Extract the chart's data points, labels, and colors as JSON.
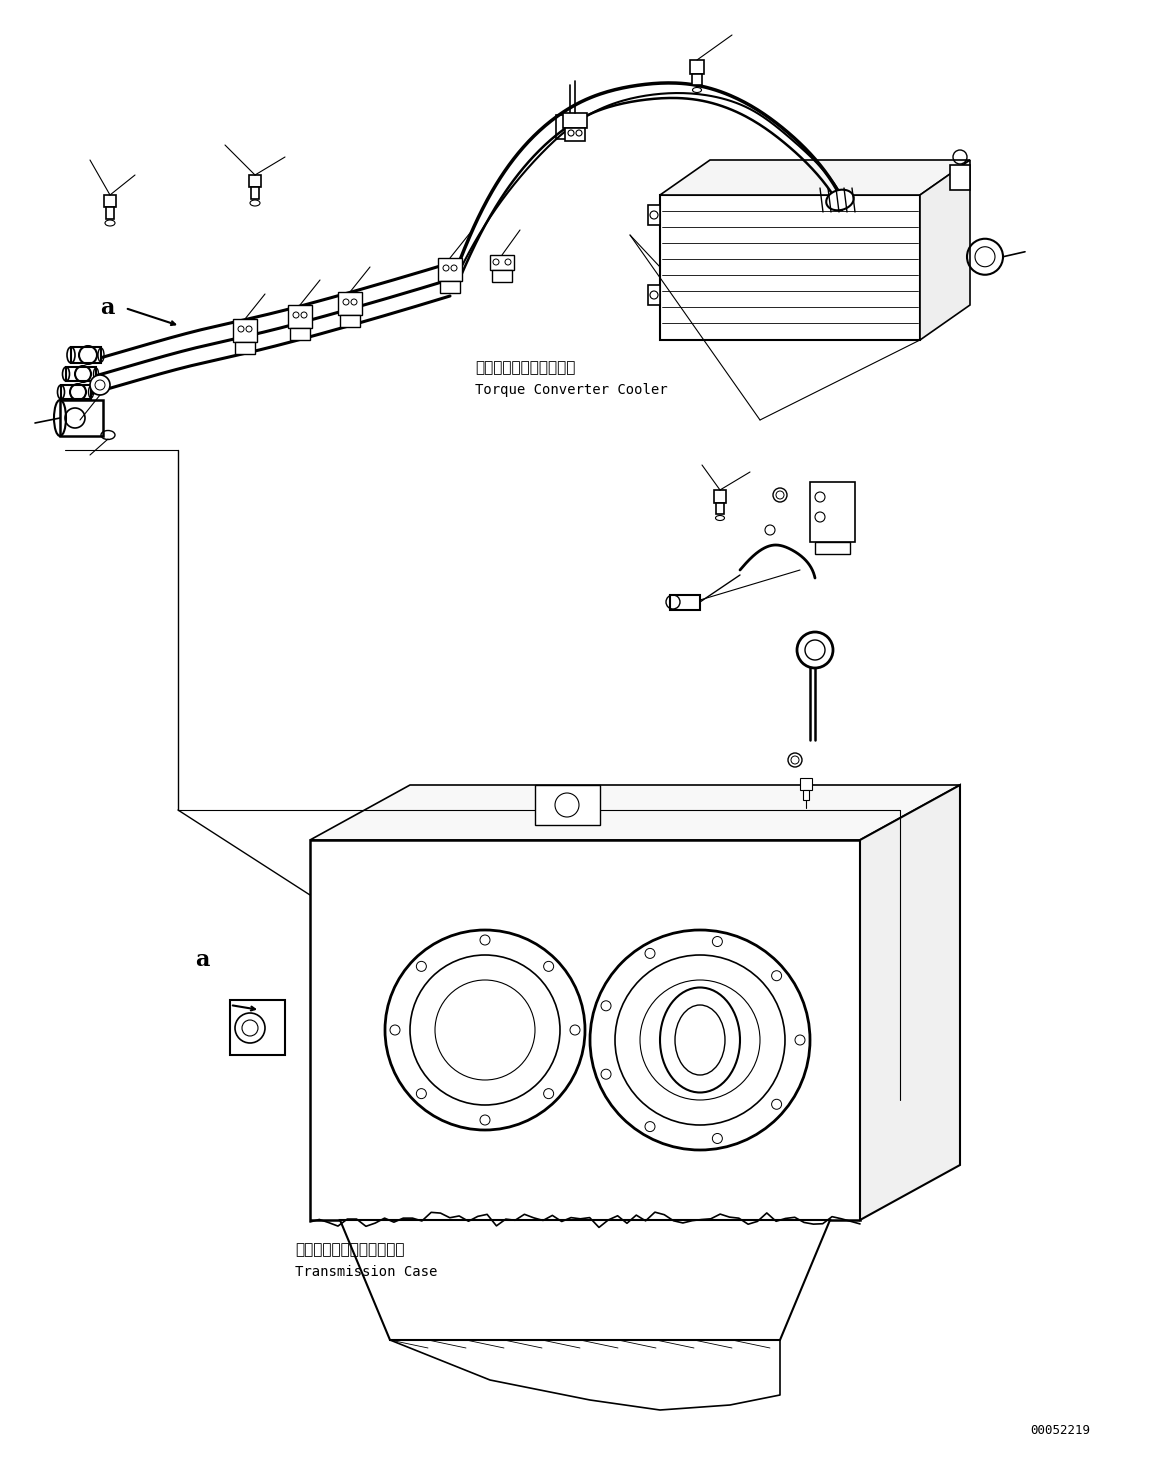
{
  "bg_color": "#ffffff",
  "line_color": "#000000",
  "fig_width": 11.63,
  "fig_height": 14.58,
  "dpi": 100,
  "label_torque_jp": "トルクコンバータクーラ",
  "label_torque_en": "Torque Converter Cooler",
  "label_trans_jp": "トランスミッションケース",
  "label_trans_en": "Transmission Case",
  "label_a1": "a",
  "label_a2": "a",
  "doc_number": "00052219",
  "font_size_label": 10,
  "font_size_jp": 11,
  "font_size_doc": 9,
  "lw_pipe": 2.2,
  "lw_main": 1.2,
  "lw_thin": 0.7
}
